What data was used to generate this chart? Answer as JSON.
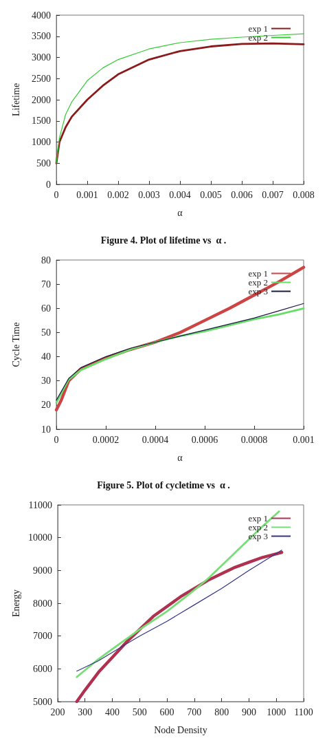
{
  "chart_data": [
    {
      "type": "line",
      "xlabel": "α",
      "ylabel": "Lifetime",
      "legend": "top right",
      "annotations": [
        "Figure 4. Plot of lifetime vs  α ."
      ],
      "xlim": [
        0,
        0.008
      ],
      "xticks": [
        0,
        0.001,
        0.002,
        0.003,
        0.004,
        0.005,
        0.006,
        0.007,
        0.008
      ],
      "ylim": [
        0,
        4000
      ],
      "yticks": [
        0,
        500,
        1000,
        1500,
        2000,
        2500,
        3000,
        3500,
        4000
      ],
      "series": [
        {
          "name": "exp 1",
          "color": "#8b1a1a",
          "x": [
            0,
            0.0001,
            0.0003,
            0.0005,
            0.001,
            0.0015,
            0.002,
            0.003,
            0.004,
            0.005,
            0.006,
            0.007,
            0.008
          ],
          "values": [
            500,
            1000,
            1350,
            1600,
            2000,
            2330,
            2600,
            2950,
            3150,
            3260,
            3320,
            3330,
            3310
          ]
        },
        {
          "name": "exp 2",
          "color": "#33cc33",
          "x": [
            0,
            0.0001,
            0.0003,
            0.0005,
            0.001,
            0.0015,
            0.002,
            0.003,
            0.004,
            0.005,
            0.006,
            0.007,
            0.008
          ],
          "values": [
            500,
            1100,
            1650,
            1950,
            2450,
            2750,
            2950,
            3200,
            3350,
            3430,
            3480,
            3520,
            3560
          ]
        }
      ]
    },
    {
      "type": "line",
      "xlabel": "α",
      "ylabel": "Cycle Time",
      "legend": "top right",
      "annotations": [
        "Figure 5. Plot of cycletime vs  α ."
      ],
      "xlim": [
        0,
        0.001
      ],
      "xticks": [
        0,
        0.0002,
        0.0004,
        0.0006,
        0.0008,
        0.001
      ],
      "ylim": [
        10,
        80
      ],
      "yticks": [
        10,
        20,
        30,
        40,
        50,
        60,
        70,
        80
      ],
      "series": [
        {
          "name": "exp 1",
          "color": "#cc4444",
          "x": [
            0,
            2e-05,
            5e-05,
            0.0001,
            0.0002,
            0.0003,
            0.0004,
            0.0005,
            0.0006,
            0.0007,
            0.0008,
            0.0009,
            0.001
          ],
          "values": [
            18,
            22,
            30,
            35,
            39.5,
            43,
            46,
            50,
            55,
            60,
            65.5,
            71,
            77
          ]
        },
        {
          "name": "exp 2",
          "color": "#66dd66",
          "x": [
            0,
            5e-05,
            0.0001,
            0.0002,
            0.0003,
            0.0004,
            0.0005,
            0.0006,
            0.0007,
            0.0008,
            0.0009,
            0.001
          ],
          "values": [
            21,
            30.5,
            34.5,
            39,
            43,
            46,
            48.5,
            50.5,
            53,
            55.5,
            57.5,
            60
          ]
        },
        {
          "name": "exp 3",
          "color": "#1a1a40",
          "x": [
            0,
            5e-05,
            0.0001,
            0.0002,
            0.0003,
            0.0004,
            0.0005,
            0.0006,
            0.0007,
            0.0008,
            0.0009,
            0.001
          ],
          "values": [
            22,
            31,
            35.5,
            40,
            43.5,
            46,
            48.5,
            51,
            53.5,
            56,
            59,
            62
          ]
        }
      ]
    },
    {
      "type": "line",
      "xlabel": "Node Density",
      "ylabel": "Energy",
      "legend": "top right",
      "xlim": [
        200,
        1100
      ],
      "xticks": [
        200,
        300,
        400,
        500,
        600,
        700,
        800,
        900,
        1000,
        1100
      ],
      "ylim": [
        5000,
        11000
      ],
      "yticks": [
        5000,
        6000,
        7000,
        8000,
        9000,
        10000,
        11000
      ],
      "series": [
        {
          "name": "exp 1",
          "color": "#b03050",
          "x": [
            270,
            300,
            350,
            400,
            450,
            500,
            550,
            600,
            650,
            700,
            750,
            800,
            850,
            900,
            950,
            1020
          ],
          "values": [
            5000,
            5350,
            5900,
            6350,
            6800,
            7200,
            7600,
            7900,
            8200,
            8450,
            8700,
            8900,
            9100,
            9250,
            9400,
            9550
          ]
        },
        {
          "name": "exp 2",
          "color": "#77dd77",
          "x": [
            270,
            350,
            400,
            500,
            600,
            700,
            750,
            800,
            900,
            950,
            1010
          ],
          "values": [
            5750,
            6300,
            6600,
            7200,
            7750,
            8400,
            8750,
            9150,
            9950,
            10350,
            10800
          ]
        },
        {
          "name": "exp 3",
          "color": "#333388",
          "x": [
            270,
            350,
            400,
            450,
            500,
            600,
            700,
            800,
            900,
            1020
          ],
          "values": [
            5930,
            6250,
            6500,
            6750,
            7000,
            7450,
            7950,
            8450,
            9000,
            9620
          ]
        }
      ]
    }
  ]
}
